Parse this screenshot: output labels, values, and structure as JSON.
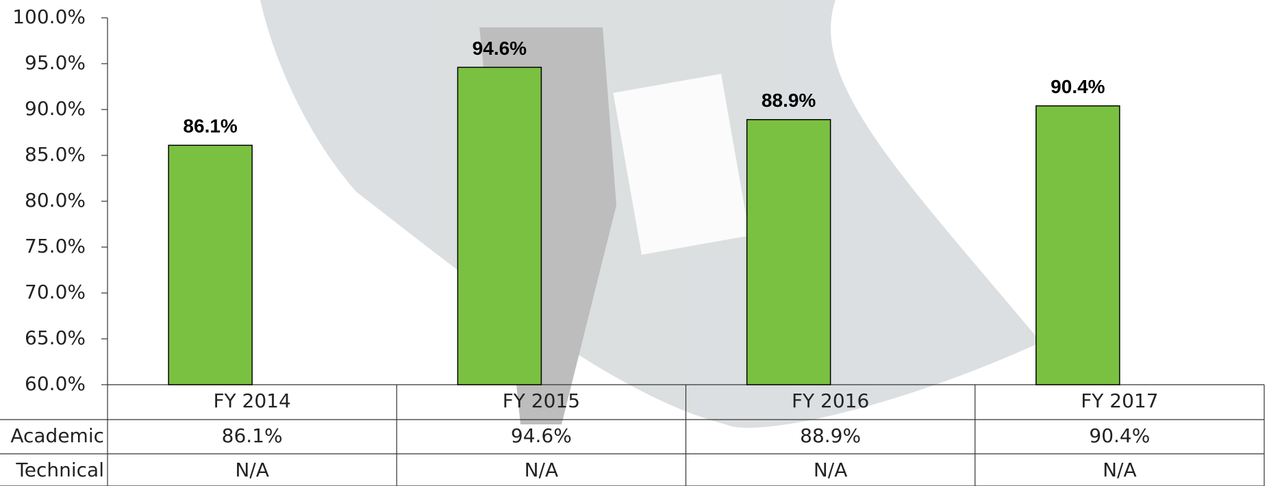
{
  "chart_data": {
    "type": "bar",
    "categories": [
      "FY 2014",
      "FY 2015",
      "FY 2016",
      "FY 2017"
    ],
    "series": [
      {
        "name": "Academic",
        "color": "#7ac142",
        "values": [
          86.1,
          94.6,
          88.9,
          90.4
        ],
        "value_labels": [
          "86.1%",
          "94.6%",
          "88.9%",
          "90.4%"
        ]
      }
    ],
    "extra_rows": [
      {
        "name": "Technical",
        "labels": [
          "N/A",
          "N/A",
          "N/A",
          "N/A"
        ]
      }
    ],
    "ylim": [
      60,
      100
    ],
    "yticks": [
      {
        "value": 60,
        "label": "60.0%"
      },
      {
        "value": 65,
        "label": "65.0%"
      },
      {
        "value": 70,
        "label": "70.0%"
      },
      {
        "value": 75,
        "label": "75.0%"
      },
      {
        "value": 80,
        "label": "80.0%"
      },
      {
        "value": 85,
        "label": "85.0%"
      },
      {
        "value": 90,
        "label": "90.0%"
      },
      {
        "value": 95,
        "label": "95.0%"
      },
      {
        "value": 100,
        "label": "100.0%"
      }
    ],
    "grid": false
  }
}
